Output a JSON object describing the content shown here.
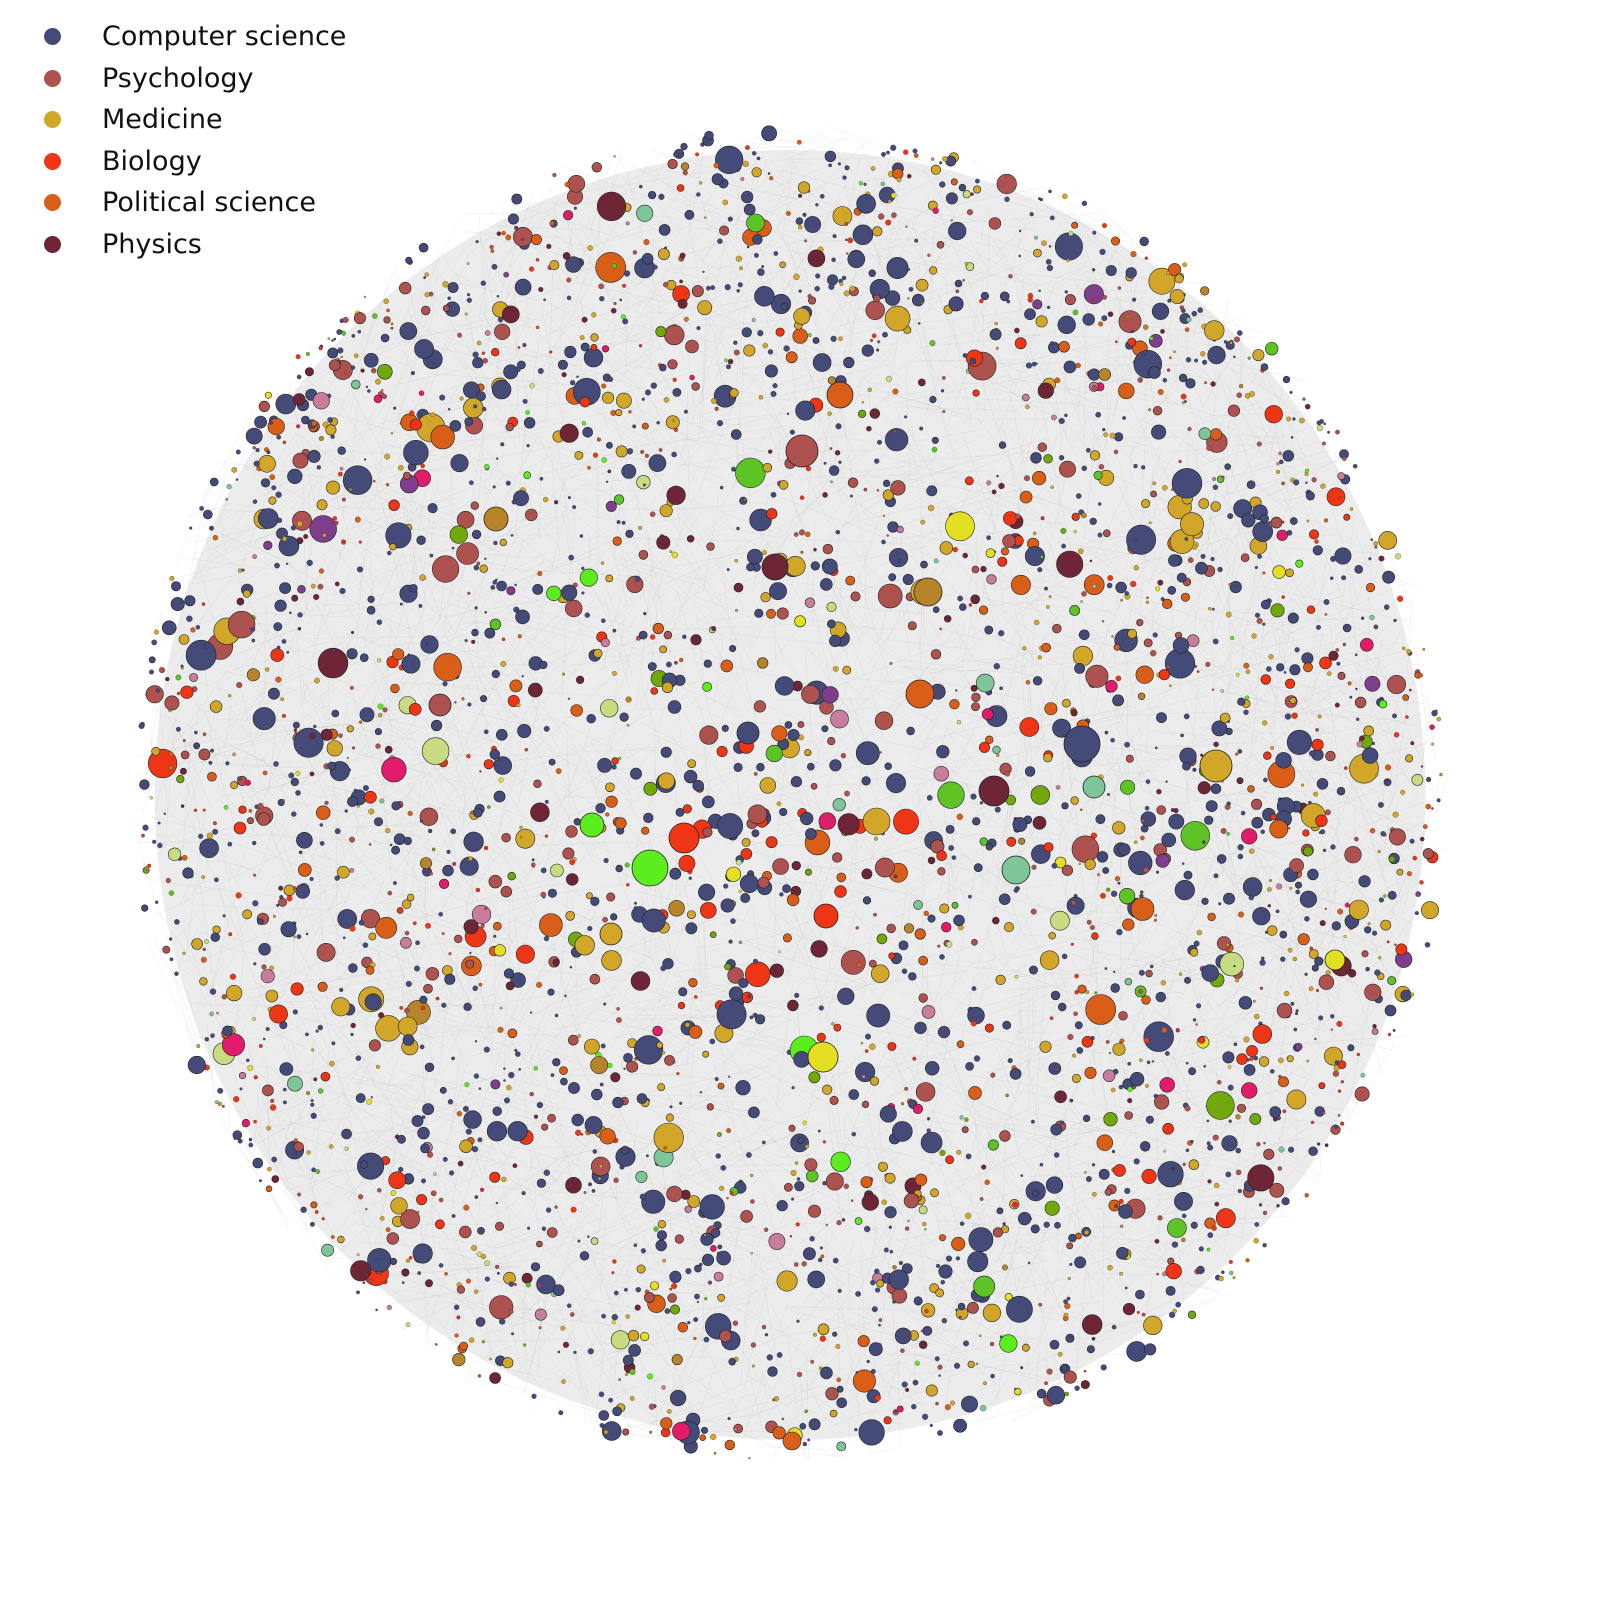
{
  "legend": {
    "items": [
      {
        "label": "Computer science",
        "color": "#444b78"
      },
      {
        "label": "Psychology",
        "color": "#ae524f"
      },
      {
        "label": "Medicine",
        "color": "#d2a729"
      },
      {
        "label": "Biology",
        "color": "#ee3617"
      },
      {
        "label": "Political science",
        "color": "#d95f19"
      },
      {
        "label": "Physics",
        "color": "#6e2637"
      }
    ]
  },
  "other_field_colors": [
    "#5ec425",
    "#71a80c",
    "#b7842a",
    "#7ec598",
    "#e4df22",
    "#c87d9c",
    "#7f3e8c",
    "#e01c6b",
    "#c7dc81",
    "#5ced1e"
  ],
  "edge_color": "#bdbdbd",
  "node_outline_color": "#222222",
  "background_color": "#ffffff",
  "hub_nodes": [
    {
      "field": "other",
      "color": "#5ced1e",
      "size": "largest"
    },
    {
      "field": "Biology",
      "size": "large"
    },
    {
      "field": "Computer science",
      "size": "large"
    },
    {
      "field": "Medicine",
      "size": "large"
    },
    {
      "field": "Psychology",
      "size": "large"
    },
    {
      "field": "Political science",
      "size": "large"
    },
    {
      "field": "Physics",
      "size": "large"
    },
    {
      "field": "other",
      "color": "#7ec598",
      "size": "large"
    },
    {
      "field": "other",
      "color": "#b7842a",
      "size": "large"
    },
    {
      "field": "other",
      "color": "#e4df22",
      "size": "medium"
    }
  ]
}
